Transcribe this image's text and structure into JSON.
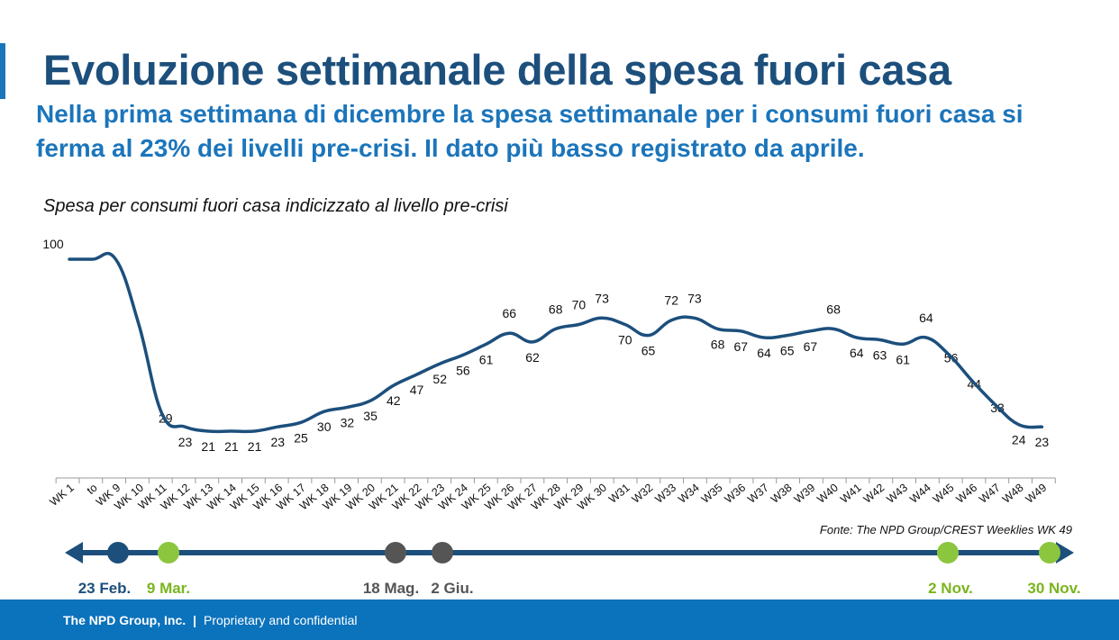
{
  "slide": {
    "title": "Evoluzione settimanale della spesa fuori casa",
    "subtitle": "Nella prima settimana di dicembre la spesa settimanale per i consumi fuori casa si ferma al 23% dei livelli pre-crisi. Il dato più basso registrato da aprile.",
    "source": "Fonte: The NPD Group/CREST Weeklies WK 49"
  },
  "footer": {
    "company": "The NPD Group, Inc.",
    "separator": "|",
    "note": "Proprietary and confidential"
  },
  "colors": {
    "title": "#1c4f7c",
    "subtitle": "#1b75bb",
    "line": "#1c4f7c",
    "footer": "#0b72bc",
    "marker_navy": "#1c4f7c",
    "marker_green": "#8cc63f",
    "marker_grey": "#555555",
    "label_green": "#7ab51d"
  },
  "chart_data": {
    "type": "line",
    "title": "Spesa per consumi fuori casa indicizzato al livello pre-crisi",
    "xlabel": "",
    "ylabel": "",
    "grid": false,
    "legend": "none",
    "categories": [
      "WK 1",
      "to",
      "WK 9",
      "WK 10",
      "WK 11",
      "WK 12",
      "WK 13",
      "WK 14",
      "WK 15",
      "WK 16",
      "WK 17",
      "WK 18",
      "WK 19",
      "WK 20",
      "WK 21",
      "WK 22",
      "WK 23",
      "WK 24",
      "WK 25",
      "WK 26",
      "WK 27",
      "WK 28",
      "WK 29",
      "WK 30",
      "W31",
      "W32",
      "W33",
      "W34",
      "W35",
      "W36",
      "W37",
      "W38",
      "W39",
      "W40",
      "W41",
      "W42",
      "W43",
      "W44",
      "W45",
      "W46",
      "W47",
      "W48",
      "W49"
    ],
    "series": [
      {
        "name": "",
        "values": [
          100,
          100,
          100,
          70,
          29,
          23,
          21,
          21,
          21,
          23,
          25,
          30,
          32,
          35,
          42,
          47,
          52,
          56,
          61,
          66,
          62,
          68,
          70,
          73,
          70,
          65,
          72,
          73,
          68,
          67,
          64,
          65,
          67,
          68,
          64,
          63,
          61,
          64,
          56,
          44,
          33,
          24,
          23
        ],
        "labels": [
          "100",
          "",
          "",
          "",
          "29",
          "23",
          "21",
          "21",
          "21",
          "23",
          "25",
          "30",
          "32",
          "35",
          "42",
          "47",
          "52",
          "56",
          "61",
          "66",
          "62",
          "68",
          "70",
          "73",
          "70",
          "65",
          "72",
          "73",
          "68",
          "67",
          "64",
          "65",
          "67",
          "68",
          "64",
          "63",
          "61",
          "64",
          "56",
          "44",
          "33",
          "24",
          "23"
        ]
      }
    ],
    "timeline": [
      {
        "label": "23 Feb.",
        "week": "WK 9",
        "color": "#1c4f7c"
      },
      {
        "label": "9 Mar.",
        "week": "WK 11",
        "color": "#8cc63f"
      },
      {
        "label": "18 Mag.",
        "week": "WK 20",
        "color": "#555555"
      },
      {
        "label": "2 Giu.",
        "week": "WK 22",
        "color": "#555555"
      },
      {
        "label": "2 Nov.",
        "week": "W45",
        "color": "#8cc63f"
      },
      {
        "label": "30 Nov.",
        "week": "W49",
        "color": "#8cc63f"
      }
    ]
  }
}
